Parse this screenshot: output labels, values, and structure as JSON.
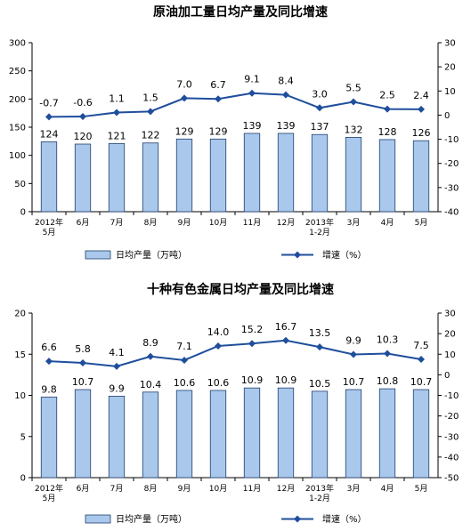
{
  "chart_data": [
    {
      "type": "bar",
      "title": "原油加工量日均产量及同比增速",
      "categories": [
        [
          "2012年",
          "5月"
        ],
        [
          "6月"
        ],
        [
          "7月"
        ],
        [
          "8月"
        ],
        [
          "9月"
        ],
        [
          "10月"
        ],
        [
          "11月"
        ],
        [
          "12月"
        ],
        [
          "2013年",
          "1-2月"
        ],
        [
          "3月"
        ],
        [
          "4月"
        ],
        [
          "5月"
        ]
      ],
      "series": [
        {
          "name": "日均产量（万吨）",
          "type": "bar",
          "axis": "left",
          "values": [
            124,
            120,
            121,
            122,
            129,
            129,
            139,
            139,
            137,
            132,
            128,
            126
          ]
        },
        {
          "name": "增速（%）",
          "type": "line",
          "axis": "right",
          "values": [
            -0.7,
            -0.6,
            1.1,
            1.5,
            7.0,
            6.7,
            9.1,
            8.4,
            3.0,
            5.5,
            2.5,
            2.4
          ]
        }
      ],
      "ylim_left": [
        0,
        300
      ],
      "yticks_left": [
        0,
        50,
        100,
        150,
        200,
        250,
        300
      ],
      "ylim_right": [
        -40,
        30
      ],
      "yticks_right": [
        -40,
        -30,
        -20,
        -10,
        0,
        10,
        20,
        30
      ],
      "bar_labels": [
        "124",
        "120",
        "121",
        "122",
        "129",
        "129",
        "139",
        "139",
        "137",
        "132",
        "128",
        "126"
      ],
      "line_labels": [
        "-0.7",
        "-0.6",
        "1.1",
        "1.5",
        "7.0",
        "6.7",
        "9.1",
        "8.4",
        "3.0",
        "5.5",
        "2.5",
        "2.4"
      ],
      "legend": {
        "bar": "日均产量（万吨）",
        "line": "增速（%）",
        "position": "bottom"
      },
      "grid": false
    },
    {
      "type": "bar",
      "title": "十种有色金属日均产量及同比增速",
      "categories": [
        [
          "2012年",
          "5月"
        ],
        [
          "6月"
        ],
        [
          "7月"
        ],
        [
          "8月"
        ],
        [
          "9月"
        ],
        [
          "10月"
        ],
        [
          "11月"
        ],
        [
          "12月"
        ],
        [
          "2013年",
          "1-2月"
        ],
        [
          "3月"
        ],
        [
          "4月"
        ],
        [
          "5月"
        ]
      ],
      "series": [
        {
          "name": "日均产量（万吨）",
          "type": "bar",
          "axis": "left",
          "values": [
            9.8,
            10.7,
            9.9,
            10.4,
            10.6,
            10.6,
            10.9,
            10.9,
            10.5,
            10.7,
            10.8,
            10.7
          ]
        },
        {
          "name": "增速（%）",
          "type": "line",
          "axis": "right",
          "values": [
            6.6,
            5.8,
            4.1,
            8.9,
            7.1,
            14.0,
            15.2,
            16.7,
            13.5,
            9.9,
            10.3,
            7.5
          ]
        }
      ],
      "ylim_left": [
        0,
        20
      ],
      "yticks_left": [
        0,
        5,
        10,
        15,
        20
      ],
      "ylim_right": [
        -50,
        30
      ],
      "yticks_right": [
        -50,
        -40,
        -30,
        -20,
        -10,
        0,
        10,
        20,
        30
      ],
      "bar_labels": [
        "9.8",
        "10.7",
        "9.9",
        "10.4",
        "10.6",
        "10.6",
        "10.9",
        "10.9",
        "10.5",
        "10.7",
        "10.8",
        "10.7"
      ],
      "line_labels": [
        "6.6",
        "5.8",
        "4.1",
        "8.9",
        "7.1",
        "14.0",
        "15.2",
        "16.7",
        "13.5",
        "9.9",
        "10.3",
        "7.5"
      ],
      "legend": {
        "bar": "日均产量（万吨）",
        "line": "增速（%）",
        "position": "bottom"
      },
      "grid": false
    }
  ],
  "colors": {
    "bar_fill": "#a9c8ec",
    "bar_stroke": "#1f3f6e",
    "line": "#1f4e9c",
    "axis": "#000000"
  }
}
